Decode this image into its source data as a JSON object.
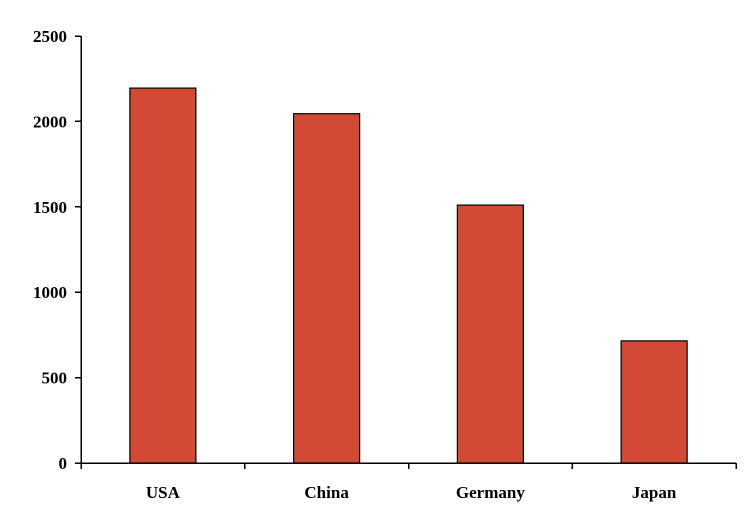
{
  "chart_data": {
    "type": "bar",
    "title": "",
    "xlabel": "",
    "ylabel": "",
    "categories": [
      "USA",
      "China",
      "Germany",
      "Japan"
    ],
    "values": [
      2195,
      2045,
      1510,
      715
    ],
    "ylim": [
      0,
      2500
    ],
    "yticks": [
      0,
      500,
      1000,
      1500,
      2000,
      2500
    ],
    "grid": false,
    "legend": "none",
    "bar_color": "#D24A36"
  }
}
